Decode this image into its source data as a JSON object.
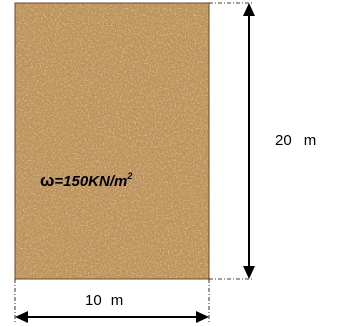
{
  "load": {
    "symbol": "ω",
    "value": "=150KN/m",
    "exponent": "2"
  },
  "dimensions": {
    "height": {
      "value": "20",
      "unit": "m"
    },
    "width": {
      "value": "10",
      "unit": "m"
    }
  },
  "colors": {
    "fill_base": "#c99b63",
    "fill_dark": "#8a5f33",
    "fill_light": "#e2be8c",
    "line": "#000000"
  }
}
